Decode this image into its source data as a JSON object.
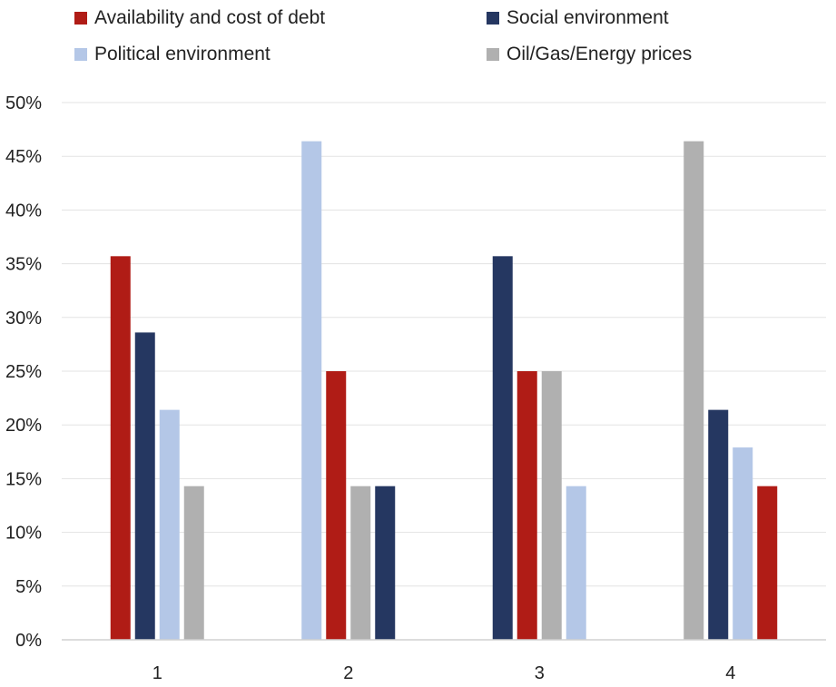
{
  "chart_data": {
    "type": "bar",
    "categories": [
      "1",
      "2",
      "3",
      "4"
    ],
    "series": [
      {
        "name": "Availability and cost of debt",
        "color": "#b01c16",
        "values": [
          35.7,
          25.0,
          25.0,
          14.3
        ]
      },
      {
        "name": "Social environment",
        "color": "#253761",
        "values": [
          28.6,
          14.3,
          35.7,
          21.4
        ]
      },
      {
        "name": "Political environment",
        "color": "#b4c7e7",
        "values": [
          21.4,
          46.4,
          14.3,
          17.9
        ]
      },
      {
        "name": "Oil/Gas/Energy prices",
        "color": "#b0b0b0",
        "values": [
          14.3,
          14.3,
          25.0,
          46.4
        ]
      }
    ],
    "bar_order": [
      [
        "Availability and cost of debt",
        "Social environment",
        "Political environment",
        "Oil/Gas/Energy prices"
      ],
      [
        "Political environment",
        "Availability and cost of debt",
        "Oil/Gas/Energy prices",
        "Social environment"
      ],
      [
        "Social environment",
        "Availability and cost of debt",
        "Oil/Gas/Energy prices",
        "Political environment"
      ],
      [
        "Oil/Gas/Energy prices",
        "Social environment",
        "Political environment",
        "Availability and cost of debt"
      ]
    ],
    "y_ticks": [
      "0%",
      "5%",
      "10%",
      "15%",
      "20%",
      "25%",
      "30%",
      "35%",
      "40%",
      "45%",
      "50%"
    ],
    "ylim": [
      0,
      50
    ],
    "ytick_step": 5,
    "grid": true,
    "legend": "top",
    "title": "",
    "xlabel": "",
    "ylabel": ""
  }
}
